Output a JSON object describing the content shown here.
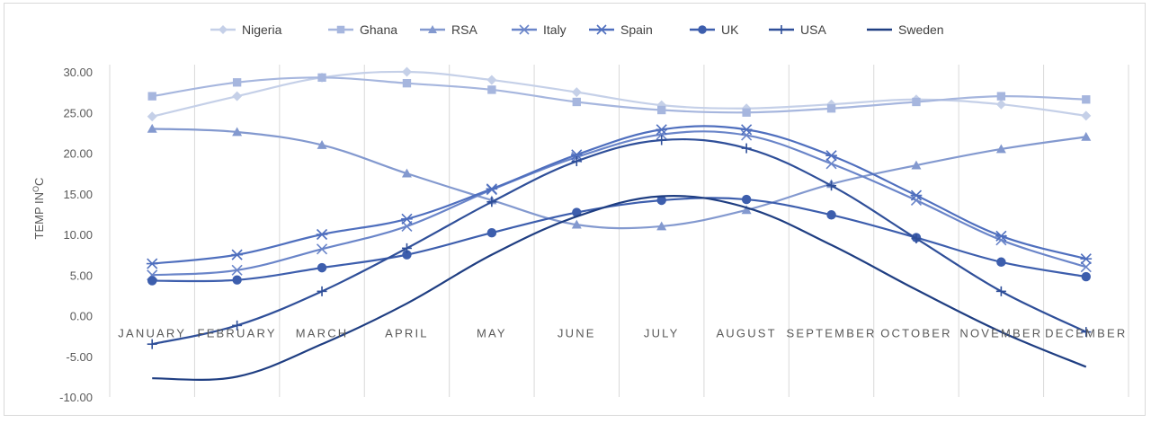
{
  "chart_data": {
    "type": "line",
    "title": "",
    "xlabel": "",
    "ylabel": "TEMP IN",
    "ylabel_unit": "O",
    "ylabel_suffix": "C",
    "ylim": [
      -10,
      30
    ],
    "ytick_step": 5,
    "ytick_labels": [
      "30.00",
      "25.00",
      "20.00",
      "15.00",
      "10.00",
      "5.00",
      "0.00",
      "-5.00",
      "-10.00"
    ],
    "grid": "vertical",
    "legend_position": "top",
    "categories": [
      "JANUARY",
      "FEBRUARY",
      "MARCH",
      "APRIL",
      "MAY",
      "JUNE",
      "JULY",
      "AUGUST",
      "SEPTEMBER",
      "OCTOBER",
      "NOVEMBER",
      "DECEMBER"
    ],
    "series": [
      {
        "name": "Nigeria",
        "marker": "diamond",
        "color": "#c5d0e8",
        "values": [
          24.5,
          27.0,
          29.3,
          30.0,
          29.0,
          27.5,
          25.9,
          25.5,
          26.0,
          26.6,
          26.0,
          24.6
        ]
      },
      {
        "name": "Ghana",
        "marker": "square",
        "color": "#a6b6de",
        "values": [
          27.0,
          28.7,
          29.3,
          28.6,
          27.8,
          26.3,
          25.3,
          25.0,
          25.5,
          26.3,
          27.0,
          26.6
        ]
      },
      {
        "name": "RSA",
        "marker": "triangle",
        "color": "#8399cf",
        "values": [
          23.0,
          22.6,
          21.0,
          17.5,
          14.2,
          11.2,
          11.0,
          13.0,
          16.2,
          18.5,
          20.5,
          22.0
        ]
      },
      {
        "name": "Italy",
        "marker": "x",
        "color": "#6a85c9",
        "values": [
          5.0,
          5.6,
          8.2,
          11.0,
          15.5,
          19.5,
          22.3,
          22.2,
          18.7,
          14.2,
          9.3,
          6.0
        ]
      },
      {
        "name": "Spain",
        "marker": "star",
        "color": "#4f6fbe",
        "values": [
          6.4,
          7.5,
          10.0,
          11.9,
          15.6,
          19.8,
          22.9,
          22.9,
          19.7,
          14.8,
          9.8,
          7.0
        ]
      },
      {
        "name": "UK",
        "marker": "circle",
        "color": "#3d5ead",
        "values": [
          4.3,
          4.4,
          5.9,
          7.5,
          10.2,
          12.7,
          14.2,
          14.3,
          12.4,
          9.6,
          6.6,
          4.8
        ]
      },
      {
        "name": "USA",
        "marker": "plus",
        "color": "#2f4f99",
        "values": [
          -3.5,
          -1.2,
          3.0,
          8.3,
          14.0,
          19.0,
          21.6,
          20.6,
          16.0,
          9.5,
          3.0,
          -2.0
        ]
      },
      {
        "name": "Sweden",
        "marker": "none",
        "color": "#1f3e82",
        "values": [
          -7.7,
          -7.5,
          -3.5,
          1.5,
          7.5,
          12.2,
          14.7,
          13.3,
          8.7,
          3.2,
          -2.0,
          -6.3
        ]
      }
    ]
  }
}
